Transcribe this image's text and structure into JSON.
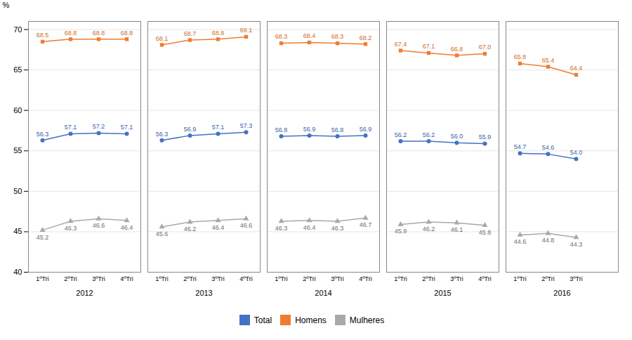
{
  "chart_data": {
    "type": "line",
    "categories": [
      "1ºTri",
      "2ºTri",
      "3ºTri",
      "4ºTri",
      "1ºTri",
      "2ºTri",
      "3ºTri",
      "4ºTri",
      "1ºTri",
      "2ºTri",
      "3ºTri",
      "4ºTri",
      "1ºTri",
      "2ºTri",
      "3ºTri",
      "4ºTri",
      "1ºTri",
      "2ºTri",
      "3ºTri"
    ],
    "category_groups": [
      "2012",
      "2012",
      "2012",
      "2012",
      "2013",
      "2013",
      "2013",
      "2013",
      "2014",
      "2014",
      "2014",
      "2014",
      "2015",
      "2015",
      "2015",
      "2015",
      "2016",
      "2016",
      "2016"
    ],
    "series": [
      {
        "name": "Total",
        "color": "#4472C4",
        "marker": "circle",
        "values": [
          56.3,
          57.1,
          57.2,
          57.1,
          56.3,
          56.9,
          57.1,
          57.3,
          56.8,
          56.9,
          56.8,
          56.9,
          56.2,
          56.2,
          56.0,
          55.9,
          54.7,
          54.6,
          54.0
        ]
      },
      {
        "name": "Homens",
        "color": "#ED7D31",
        "marker": "square",
        "values": [
          68.5,
          68.8,
          68.8,
          68.8,
          68.1,
          68.7,
          68.8,
          69.1,
          68.3,
          68.4,
          68.3,
          68.2,
          67.4,
          67.1,
          66.8,
          67.0,
          65.8,
          65.4,
          64.4
        ]
      },
      {
        "name": "Mulheres",
        "color": "#A9A9A9",
        "marker": "triangle",
        "values": [
          45.2,
          46.3,
          46.6,
          46.4,
          45.6,
          46.2,
          46.4,
          46.6,
          46.3,
          46.4,
          46.3,
          46.7,
          45.9,
          46.2,
          46.1,
          45.8,
          44.6,
          44.8,
          44.3
        ]
      }
    ],
    "y_label": "%",
    "ylim": [
      40,
      71
    ],
    "yticks": [
      40,
      45,
      50,
      55,
      60,
      65,
      70
    ],
    "grid": true,
    "data_labels": true,
    "legend": "bottom"
  }
}
